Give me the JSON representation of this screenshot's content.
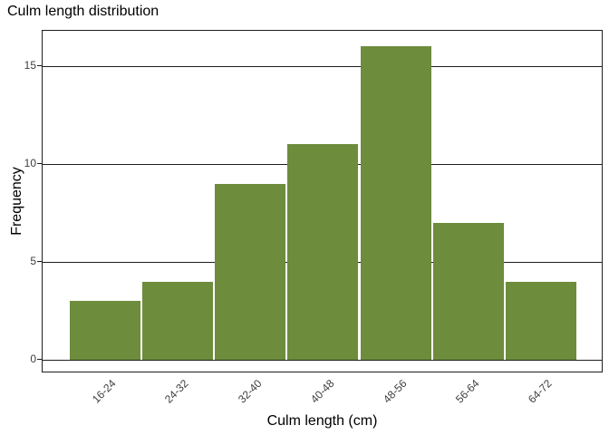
{
  "chart_data": {
    "type": "bar",
    "subtype": "histogram",
    "title": "Culm length distribution",
    "xlabel": "Culm length (cm)",
    "ylabel": "Frequency",
    "categories": [
      "16-24",
      "24-32",
      "32-40",
      "40-48",
      "48-56",
      "56-64",
      "64-72"
    ],
    "values": [
      3,
      4,
      9,
      11,
      16,
      7,
      4
    ],
    "yticks": [
      0,
      5,
      10,
      15
    ],
    "ylim": [
      -0.7,
      16.8
    ],
    "grid": "horizontal-major-black",
    "legend": "none",
    "colors": {
      "bar": "#6d8c3c",
      "axis": "#1f1f1f",
      "grid": "#1f1f1f",
      "title_text": "#000000",
      "tick_label_text": "#3d3d3d",
      "background": "#ffffff"
    }
  }
}
